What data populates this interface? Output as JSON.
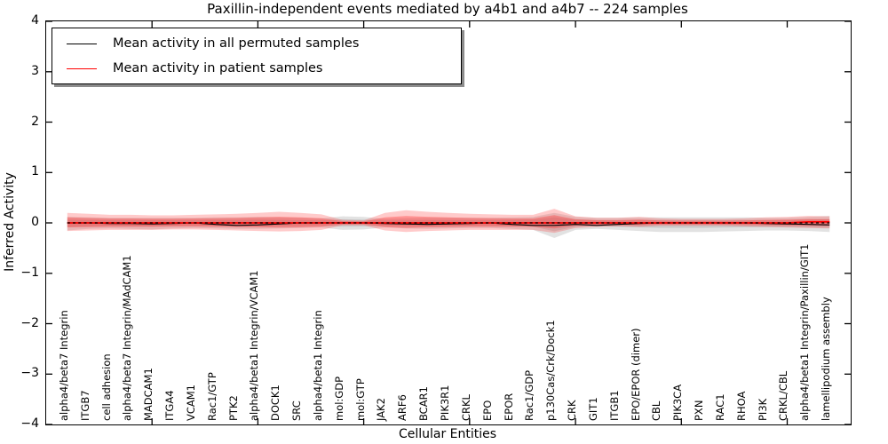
{
  "figure": {
    "title": "Paxillin-independent events mediated by a4b1 and a4b7 -- 224 samples",
    "xlabel": "Cellular Entities",
    "ylabel": "Inferred Activity"
  },
  "legend": {
    "items": [
      {
        "label": "Mean activity in all permuted samples",
        "color": "#000000"
      },
      {
        "label": "Mean activity in patient samples",
        "color": "#ff0000"
      }
    ]
  },
  "chart_data": {
    "type": "line",
    "title": "Paxillin-independent events mediated by a4b1 and a4b7 -- 224 samples",
    "xlabel": "Cellular Entities",
    "ylabel": "Inferred Activity",
    "ylim": [
      -4,
      4
    ],
    "yticks": [
      4,
      3,
      2,
      1,
      0,
      -1,
      -2,
      -3,
      -4
    ],
    "xtick_step": 5,
    "grid": false,
    "legend_position": "upper left",
    "categories": [
      "alpha4/beta7 Integrin",
      "ITGB7",
      "cell adhesion",
      "alpha4/beta7 Integrin/MAdCAM1",
      "MADCAM1",
      "ITGA4",
      "VCAM1",
      "Rac1/GTP",
      "PTK2",
      "alpha4/beta1 Integrin/VCAM1",
      "DOCK1",
      "SRC",
      "alpha4/beta1 Integrin",
      "mol:GDP",
      "mol:GTP",
      "JAK2",
      "ARF6",
      "BCAR1",
      "PIK3R1",
      "CRKL",
      "EPO",
      "EPOR",
      "Rac1/GDP",
      "p130Cas/Crk/Dock1",
      "CRK",
      "GIT1",
      "ITGB1",
      "EPO/EPOR (dimer)",
      "CBL",
      "PIK3CA",
      "PXN",
      "RAC1",
      "RHOA",
      "PI3K",
      "CRKL/CBL",
      "alpha4/beta1 Integrin/Paxillin/GIT1",
      "lamellipodium assembly"
    ],
    "series": [
      {
        "name": "Mean activity in all permuted samples",
        "color": "#000000",
        "style": "solid",
        "values": [
          0,
          0,
          -0.01,
          -0.01,
          -0.02,
          -0.01,
          0,
          -0.03,
          -0.05,
          -0.04,
          -0.02,
          0,
          0,
          0,
          0,
          -0.01,
          -0.02,
          -0.03,
          -0.02,
          -0.01,
          0,
          -0.03,
          -0.05,
          -0.05,
          -0.03,
          -0.05,
          -0.03,
          -0.01,
          0,
          0,
          0,
          0,
          0,
          -0.01,
          -0.02,
          -0.03,
          -0.04
        ]
      },
      {
        "name": "Mean activity in patient samples",
        "color": "#ff0000",
        "style": "solid",
        "values": [
          0,
          0,
          0,
          0,
          0,
          0,
          0,
          0,
          0,
          0,
          0,
          0,
          0,
          0,
          0,
          0,
          0,
          0,
          0,
          0,
          0,
          0,
          0,
          0,
          0,
          0,
          0,
          0,
          0,
          0,
          0,
          0,
          0,
          0,
          0,
          0.02,
          0.02
        ]
      }
    ],
    "zero_reference_line": {
      "value": 0,
      "color": "#000000",
      "style": "dotted"
    },
    "bands": [
      {
        "name": "permuted-samples-spread",
        "color": "#969696",
        "upper": [
          0.12,
          0.11,
          0.1,
          0.1,
          0.1,
          0.1,
          0.1,
          0.11,
          0.11,
          0.12,
          0.11,
          0.1,
          0.09,
          0.13,
          0.12,
          0.08,
          0.09,
          0.1,
          0.1,
          0.1,
          0.1,
          0.11,
          0.12,
          0.2,
          0.12,
          0.1,
          0.1,
          0.11,
          0.11,
          0.11,
          0.11,
          0.11,
          0.11,
          0.1,
          0.1,
          0.12,
          0.14
        ],
        "lower": [
          -0.15,
          -0.12,
          -0.11,
          -0.12,
          -0.13,
          -0.11,
          -0.1,
          -0.11,
          -0.12,
          -0.12,
          -0.11,
          -0.1,
          -0.09,
          -0.14,
          -0.13,
          -0.09,
          -0.11,
          -0.12,
          -0.11,
          -0.1,
          -0.1,
          -0.12,
          -0.14,
          -0.3,
          -0.14,
          -0.12,
          -0.14,
          -0.16,
          -0.18,
          -0.18,
          -0.18,
          -0.17,
          -0.16,
          -0.15,
          -0.15,
          -0.16,
          -0.18
        ]
      },
      {
        "name": "patient-samples-spread",
        "color": "#ff2a2a",
        "upper": [
          0.2,
          0.18,
          0.16,
          0.16,
          0.15,
          0.15,
          0.16,
          0.17,
          0.18,
          0.2,
          0.22,
          0.2,
          0.17,
          0.06,
          0.05,
          0.2,
          0.25,
          0.22,
          0.2,
          0.18,
          0.17,
          0.16,
          0.16,
          0.28,
          0.13,
          0.1,
          0.1,
          0.12,
          0.09,
          0.08,
          0.08,
          0.08,
          0.09,
          0.11,
          0.12,
          0.14,
          0.13
        ],
        "lower": [
          -0.16,
          -0.15,
          -0.14,
          -0.14,
          -0.14,
          -0.13,
          -0.13,
          -0.14,
          -0.15,
          -0.16,
          -0.17,
          -0.16,
          -0.14,
          -0.05,
          -0.05,
          -0.15,
          -0.18,
          -0.16,
          -0.15,
          -0.14,
          -0.14,
          -0.14,
          -0.14,
          -0.2,
          -0.1,
          -0.08,
          -0.07,
          -0.08,
          -0.06,
          -0.06,
          -0.06,
          -0.06,
          -0.07,
          -0.08,
          -0.09,
          -0.1,
          -0.11
        ]
      }
    ]
  },
  "colors": {
    "axis": "#000000",
    "background": "#ffffff",
    "permuted_line": "#000000",
    "patient_line": "#ff0000"
  }
}
